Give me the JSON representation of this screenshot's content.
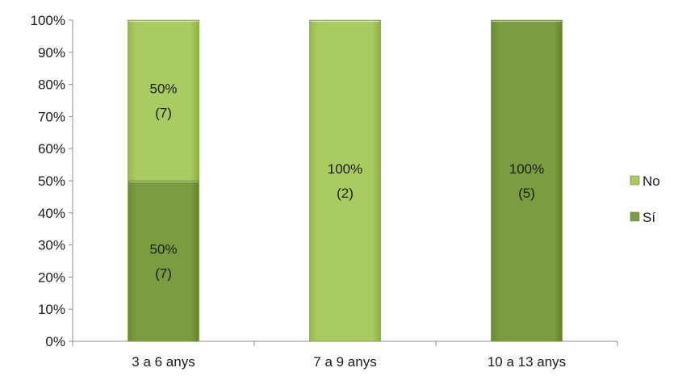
{
  "chart_data": {
    "type": "bar",
    "stacked": true,
    "percent": true,
    "categories": [
      "3 a 6 anys",
      "7 a 9 anys",
      "10 a 13 anys"
    ],
    "series": [
      {
        "name": "Sí",
        "color": "#7a9c3e",
        "values": [
          50,
          0,
          100
        ],
        "labels": [
          [
            "50%",
            "(7)"
          ],
          null,
          [
            "100%",
            "(5)"
          ]
        ]
      },
      {
        "name": "No",
        "color": "#a9c95e",
        "values": [
          50,
          100,
          0
        ],
        "labels": [
          [
            "50%",
            "(7)"
          ],
          [
            "100%",
            "(2)"
          ],
          null
        ]
      }
    ],
    "y_ticks": [
      "0%",
      "10%",
      "20%",
      "30%",
      "40%",
      "50%",
      "60%",
      "70%",
      "80%",
      "90%",
      "100%"
    ],
    "ylim": [
      0,
      100
    ],
    "legend": {
      "position": "right",
      "order": [
        "No",
        "Sí"
      ]
    },
    "grid": false
  }
}
